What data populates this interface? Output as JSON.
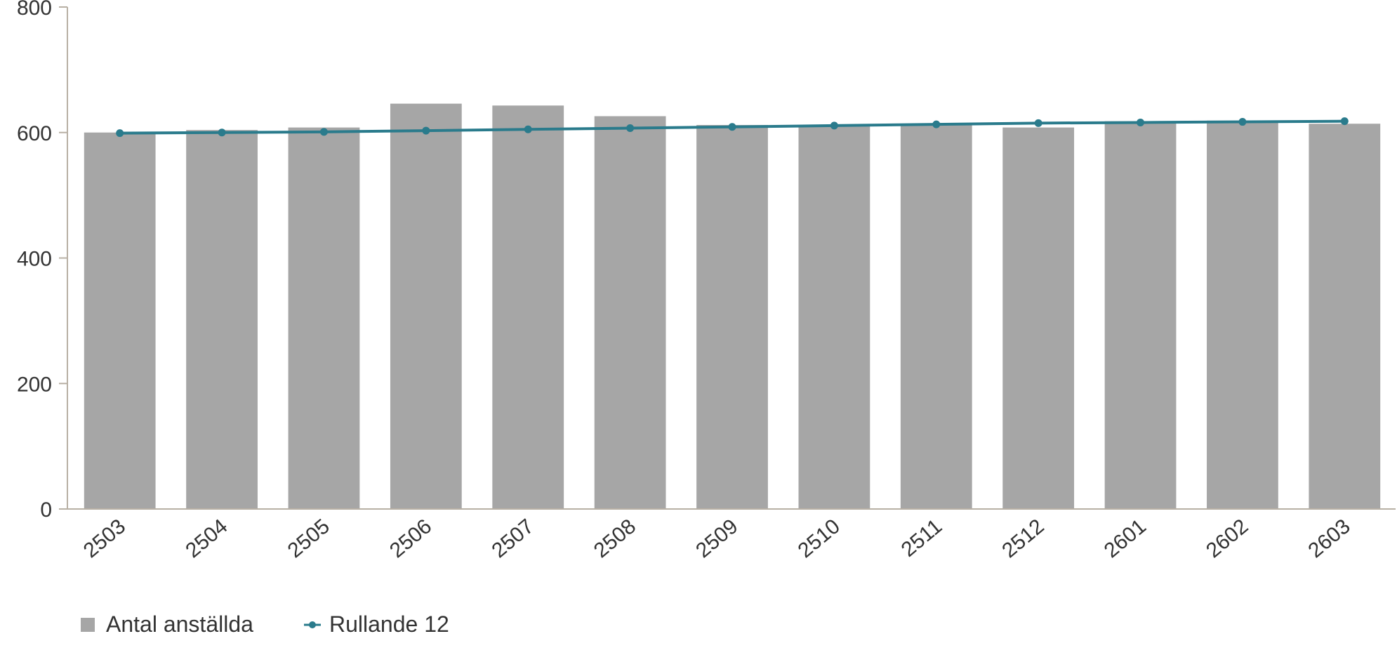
{
  "chart_data": {
    "type": "bar",
    "categories": [
      "2503",
      "2504",
      "2505",
      "2506",
      "2507",
      "2508",
      "2509",
      "2510",
      "2511",
      "2512",
      "2601",
      "2602",
      "2603"
    ],
    "series": [
      {
        "name": "Antal anställda",
        "type": "bar",
        "color": "#a6a6a6",
        "values": [
          600,
          604,
          608,
          646,
          643,
          626,
          612,
          610,
          613,
          608,
          618,
          619,
          614
        ]
      },
      {
        "name": "Rullande 12",
        "type": "line",
        "color": "#2a7b8c",
        "values": [
          599,
          600,
          601,
          603,
          605,
          607,
          609,
          611,
          613,
          615,
          616,
          617,
          618
        ]
      }
    ],
    "yticks": [
      "0",
      "200",
      "400",
      "600",
      "800"
    ],
    "ylim": [
      0,
      800
    ],
    "xlabel": "",
    "ylabel": "",
    "grid": false,
    "legend": "bottom-left"
  }
}
